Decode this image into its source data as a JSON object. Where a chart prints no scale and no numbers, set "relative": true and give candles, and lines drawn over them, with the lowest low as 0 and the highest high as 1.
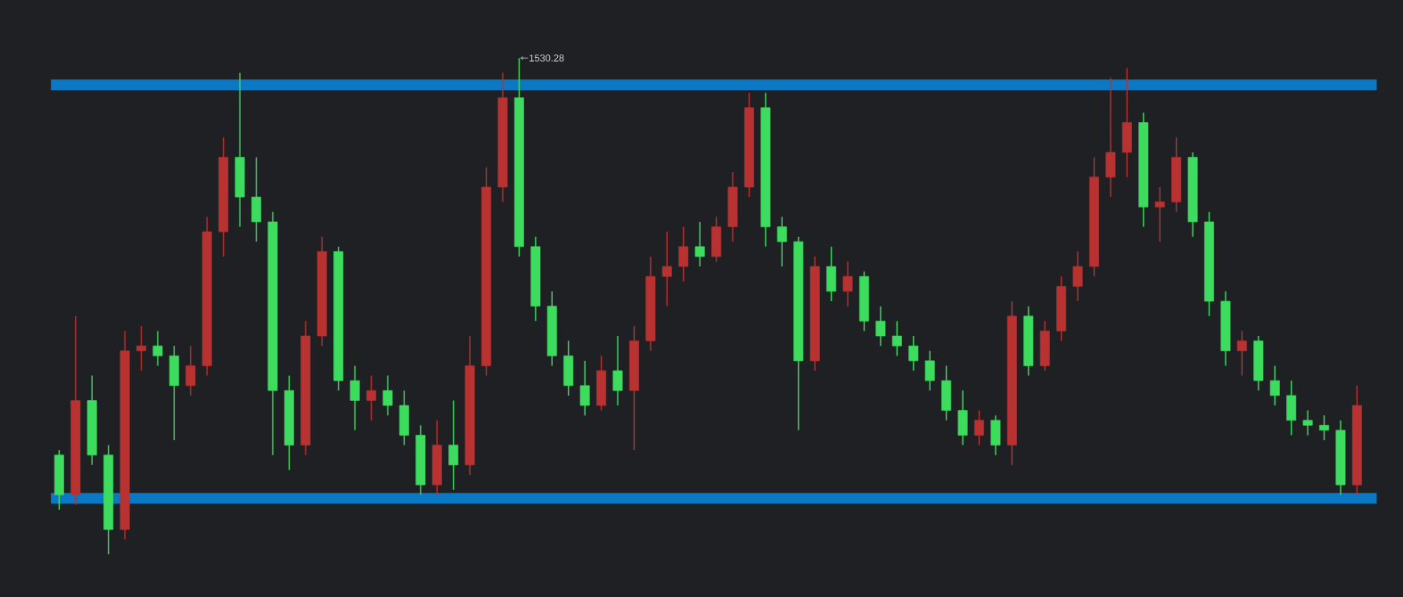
{
  "chart_data": {
    "type": "candlestick",
    "relative": true,
    "categories": [
      null,
      null,
      null,
      null,
      null,
      null,
      null,
      null,
      null,
      null,
      null,
      null,
      null,
      null,
      null,
      null,
      null,
      null,
      null,
      null,
      null,
      null,
      null,
      null,
      null,
      null,
      null,
      null,
      null,
      null,
      null,
      null,
      null,
      null,
      null,
      null,
      null,
      null,
      null,
      null,
      null,
      null,
      null,
      null,
      null,
      null,
      null,
      null,
      null,
      null,
      null,
      null,
      null,
      null,
      null,
      null,
      null,
      null,
      null,
      null,
      null,
      null,
      null,
      null,
      null,
      null,
      null,
      null,
      null,
      null,
      null,
      null,
      null,
      null,
      null,
      null,
      null,
      null,
      null,
      null
    ],
    "ohlc": [
      [
        0.2,
        0.21,
        0.09,
        0.12
      ],
      [
        0.12,
        0.48,
        0.1,
        0.31
      ],
      [
        0.31,
        0.36,
        0.18,
        0.2
      ],
      [
        0.2,
        0.22,
        0.0,
        0.05
      ],
      [
        0.05,
        0.45,
        0.03,
        0.41
      ],
      [
        0.41,
        0.46,
        0.37,
        0.42
      ],
      [
        0.42,
        0.45,
        0.38,
        0.4
      ],
      [
        0.4,
        0.42,
        0.23,
        0.34
      ],
      [
        0.34,
        0.42,
        0.32,
        0.38
      ],
      [
        0.38,
        0.68,
        0.36,
        0.65
      ],
      [
        0.65,
        0.84,
        0.6,
        0.8
      ],
      [
        0.8,
        0.97,
        0.66,
        0.72
      ],
      [
        0.72,
        0.8,
        0.63,
        0.67
      ],
      [
        0.67,
        0.69,
        0.2,
        0.33
      ],
      [
        0.33,
        0.36,
        0.17,
        0.22
      ],
      [
        0.22,
        0.47,
        0.2,
        0.44
      ],
      [
        0.44,
        0.64,
        0.42,
        0.61
      ],
      [
        0.61,
        0.62,
        0.33,
        0.35
      ],
      [
        0.35,
        0.38,
        0.25,
        0.31
      ],
      [
        0.31,
        0.36,
        0.27,
        0.33
      ],
      [
        0.33,
        0.36,
        0.28,
        0.3
      ],
      [
        0.3,
        0.33,
        0.22,
        0.24
      ],
      [
        0.24,
        0.26,
        0.12,
        0.14
      ],
      [
        0.14,
        0.27,
        0.12,
        0.22
      ],
      [
        0.22,
        0.31,
        0.13,
        0.18
      ],
      [
        0.18,
        0.44,
        0.16,
        0.38
      ],
      [
        0.38,
        0.78,
        0.36,
        0.74
      ],
      [
        0.74,
        0.97,
        0.71,
        0.92
      ],
      [
        0.92,
        1.0,
        0.6,
        0.62
      ],
      [
        0.62,
        0.64,
        0.47,
        0.5
      ],
      [
        0.5,
        0.53,
        0.38,
        0.4
      ],
      [
        0.4,
        0.43,
        0.32,
        0.34
      ],
      [
        0.34,
        0.39,
        0.28,
        0.3
      ],
      [
        0.3,
        0.4,
        0.29,
        0.37
      ],
      [
        0.37,
        0.44,
        0.3,
        0.33
      ],
      [
        0.33,
        0.46,
        0.21,
        0.43
      ],
      [
        0.43,
        0.6,
        0.41,
        0.56
      ],
      [
        0.56,
        0.65,
        0.5,
        0.58
      ],
      [
        0.58,
        0.66,
        0.55,
        0.62
      ],
      [
        0.62,
        0.67,
        0.58,
        0.6
      ],
      [
        0.6,
        0.68,
        0.59,
        0.66
      ],
      [
        0.66,
        0.77,
        0.63,
        0.74
      ],
      [
        0.74,
        0.93,
        0.72,
        0.9
      ],
      [
        0.9,
        0.93,
        0.62,
        0.66
      ],
      [
        0.66,
        0.68,
        0.58,
        0.63
      ],
      [
        0.63,
        0.64,
        0.25,
        0.39
      ],
      [
        0.39,
        0.6,
        0.37,
        0.58
      ],
      [
        0.58,
        0.62,
        0.51,
        0.53
      ],
      [
        0.53,
        0.59,
        0.5,
        0.56
      ],
      [
        0.56,
        0.57,
        0.45,
        0.47
      ],
      [
        0.47,
        0.5,
        0.42,
        0.44
      ],
      [
        0.44,
        0.47,
        0.4,
        0.42
      ],
      [
        0.42,
        0.44,
        0.37,
        0.39
      ],
      [
        0.39,
        0.41,
        0.33,
        0.35
      ],
      [
        0.35,
        0.38,
        0.27,
        0.29
      ],
      [
        0.29,
        0.33,
        0.22,
        0.24
      ],
      [
        0.24,
        0.29,
        0.22,
        0.27
      ],
      [
        0.27,
        0.28,
        0.2,
        0.22
      ],
      [
        0.22,
        0.51,
        0.18,
        0.48
      ],
      [
        0.48,
        0.5,
        0.36,
        0.38
      ],
      [
        0.38,
        0.47,
        0.37,
        0.45
      ],
      [
        0.45,
        0.56,
        0.43,
        0.54
      ],
      [
        0.54,
        0.61,
        0.51,
        0.58
      ],
      [
        0.58,
        0.8,
        0.56,
        0.76
      ],
      [
        0.76,
        0.96,
        0.72,
        0.81
      ],
      [
        0.81,
        0.98,
        0.76,
        0.87
      ],
      [
        0.87,
        0.89,
        0.66,
        0.7
      ],
      [
        0.7,
        0.74,
        0.63,
        0.71
      ],
      [
        0.71,
        0.84,
        0.69,
        0.8
      ],
      [
        0.8,
        0.81,
        0.64,
        0.67
      ],
      [
        0.67,
        0.69,
        0.48,
        0.51
      ],
      [
        0.51,
        0.53,
        0.38,
        0.41
      ],
      [
        0.41,
        0.45,
        0.36,
        0.43
      ],
      [
        0.43,
        0.44,
        0.33,
        0.35
      ],
      [
        0.35,
        0.38,
        0.3,
        0.32
      ],
      [
        0.32,
        0.35,
        0.24,
        0.27
      ],
      [
        0.27,
        0.29,
        0.24,
        0.26
      ],
      [
        0.26,
        0.28,
        0.23,
        0.25
      ],
      [
        0.25,
        0.27,
        0.12,
        0.14
      ],
      [
        0.14,
        0.34,
        0.12,
        0.3
      ]
    ],
    "colors": [
      "#3ddc5f",
      "#b83232",
      "#3ddc5f",
      "#3ddc5f",
      "#b83232",
      "#b83232",
      "#3ddc5f",
      "#3ddc5f",
      "#b83232",
      "#b83232",
      "#b83232",
      "#3ddc5f",
      "#3ddc5f",
      "#3ddc5f",
      "#3ddc5f",
      "#b83232",
      "#b83232",
      "#3ddc5f",
      "#3ddc5f",
      "#b83232",
      "#3ddc5f",
      "#3ddc5f",
      "#3ddc5f",
      "#b83232",
      "#3ddc5f",
      "#b83232",
      "#b83232",
      "#b83232",
      "#3ddc5f",
      "#3ddc5f",
      "#3ddc5f",
      "#3ddc5f",
      "#3ddc5f",
      "#b83232",
      "#3ddc5f",
      "#b83232",
      "#b83232",
      "#b83232",
      "#b83232",
      "#3ddc5f",
      "#b83232",
      "#b83232",
      "#b83232",
      "#3ddc5f",
      "#3ddc5f",
      "#3ddc5f",
      "#b83232",
      "#3ddc5f",
      "#b83232",
      "#3ddc5f",
      "#3ddc5f",
      "#3ddc5f",
      "#3ddc5f",
      "#3ddc5f",
      "#3ddc5f",
      "#3ddc5f",
      "#b83232",
      "#3ddc5f",
      "#b83232",
      "#3ddc5f",
      "#b83232",
      "#b83232",
      "#b83232",
      "#b83232",
      "#b83232",
      "#b83232",
      "#3ddc5f",
      "#b83232",
      "#b83232",
      "#3ddc5f",
      "#3ddc5f",
      "#3ddc5f",
      "#b83232",
      "#3ddc5f",
      "#3ddc5f",
      "#3ddc5f",
      "#3ddc5f",
      "#3ddc5f",
      "#3ddc5f",
      "#b83232"
    ],
    "ref_lines": [
      {
        "axis": "y",
        "value": 0.946,
        "color": "#0a78c2"
      },
      {
        "axis": "y",
        "value": 0.113,
        "color": "#0a78c2"
      }
    ],
    "annotations": [
      "1530.28"
    ]
  }
}
